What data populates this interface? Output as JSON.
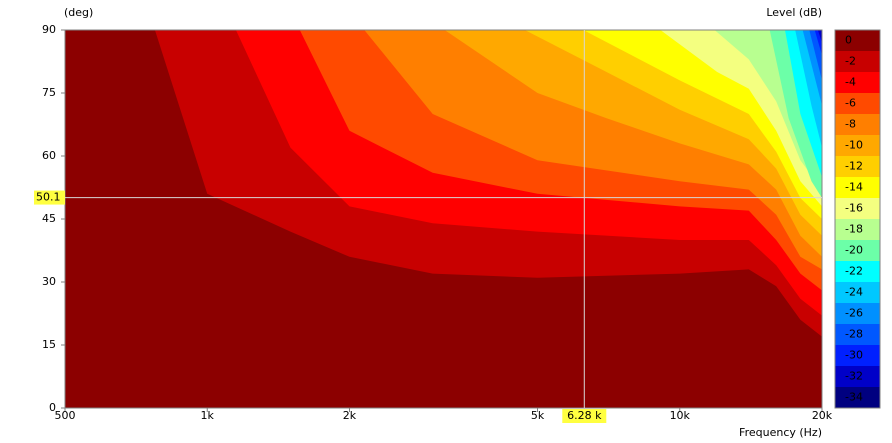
{
  "chart_data": {
    "type": "contour",
    "y_axis_label": "(deg)",
    "x_axis_label": "Frequency  (Hz)",
    "colorbar_label": "Level  (dB)",
    "log_x": true,
    "xlim": [
      500,
      20000
    ],
    "ylim": [
      0,
      90
    ],
    "xticks": [
      500,
      {
        "value": 1000,
        "label": "1k"
      },
      {
        "value": 2000,
        "label": "2k"
      },
      {
        "value": 5000,
        "label": "5k"
      },
      {
        "value": 10000,
        "label": "10k"
      },
      {
        "value": 20000,
        "label": "20k"
      }
    ],
    "yticks": [
      0,
      15,
      30,
      45,
      60,
      75,
      90
    ],
    "levels": [
      0,
      -2,
      -4,
      -6,
      -8,
      -10,
      -12,
      -14,
      -16,
      -18,
      -20,
      -22,
      -24,
      -26,
      -28,
      -30,
      -32,
      -34
    ],
    "colors": [
      "#8c0000",
      "#c80000",
      "#ff0000",
      "#ff4a00",
      "#ff7f00",
      "#ffa800",
      "#ffcf00",
      "#ffff00",
      "#f4ff80",
      "#b8ff90",
      "#6cffa8",
      "#00ffff",
      "#00c8ff",
      "#0090ff",
      "#0058ff",
      "#0020ff",
      "#0000c8",
      "#000080"
    ],
    "contours": [
      {
        "x": [
          775,
          1000,
          1500,
          2000,
          3000,
          5000,
          10000,
          14000,
          16000,
          18000,
          20000
        ],
        "values": [
          90,
          51,
          42,
          36,
          32,
          31,
          32,
          33,
          29,
          21,
          17
        ]
      },
      {
        "x": [
          1150,
          1500,
          2000,
          3000,
          5000,
          10000,
          14000,
          16000,
          18000,
          20000
        ],
        "values": [
          90,
          62,
          48,
          44,
          42,
          40,
          40,
          34,
          26,
          22
        ]
      },
      {
        "x": [
          1570,
          2000,
          3000,
          5000,
          10000,
          14000,
          16000,
          18000,
          20000
        ],
        "values": [
          90,
          66,
          56,
          51,
          48,
          47,
          40,
          32,
          28
        ]
      },
      {
        "x": [
          2150,
          3000,
          5000,
          10000,
          14000,
          16000,
          18000,
          20000
        ],
        "values": [
          90,
          70,
          59,
          54,
          52,
          46,
          36,
          33
        ]
      },
      {
        "x": [
          3180,
          5000,
          7000,
          10000,
          14000,
          16000,
          18000,
          20000
        ],
        "values": [
          90,
          75,
          69,
          63,
          58,
          52,
          41,
          36
        ]
      },
      {
        "x": [
          4700,
          7000,
          10000,
          14000,
          16000,
          18000,
          20000
        ],
        "values": [
          90,
          80,
          71,
          64,
          57,
          46,
          41
        ]
      },
      {
        "x": [
          6250,
          10000,
          14000,
          16000,
          18000,
          20000
        ],
        "values": [
          90,
          78,
          70,
          61,
          50,
          45
        ]
      },
      {
        "x": [
          9100,
          12000,
          14000,
          16000,
          18000,
          20000
        ],
        "values": [
          90,
          80,
          76,
          66,
          54,
          48
        ]
      },
      {
        "x": [
          11850,
          14000,
          16000,
          18000,
          20000
        ],
        "values": [
          90,
          83,
          73,
          59,
          52
        ]
      },
      {
        "x": [
          15500,
          17000,
          19000,
          20000
        ],
        "values": [
          90,
          69,
          54,
          50
        ]
      },
      {
        "x": [
          16700,
          18000,
          20000
        ],
        "values": [
          90,
          70,
          55
        ]
      },
      {
        "x": [
          17550,
          19000,
          20000
        ],
        "values": [
          90,
          72,
          62
        ]
      },
      {
        "x": [
          18200,
          20000
        ],
        "values": [
          90,
          72
        ]
      },
      {
        "x": [
          18800,
          20000
        ],
        "values": [
          90,
          78
        ]
      },
      {
        "x": [
          19300,
          20000
        ],
        "values": [
          90,
          84
        ]
      },
      {
        "x": [
          19600,
          20000
        ],
        "values": [
          90,
          87
        ]
      }
    ],
    "cursor": {
      "x": 6280,
      "x_label": "6.28 k",
      "y": 50.1,
      "y_label": "50.1"
    }
  }
}
